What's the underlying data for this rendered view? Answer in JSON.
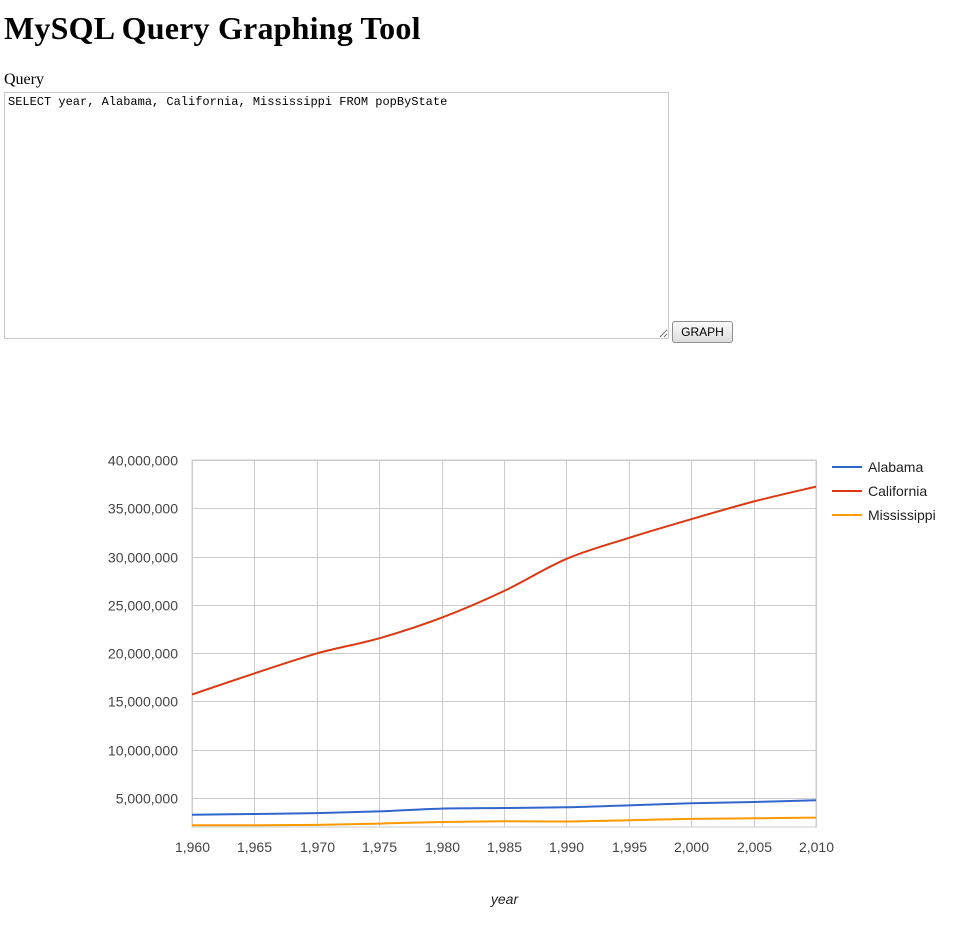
{
  "page": {
    "title": "MySQL Query Graphing Tool",
    "query_label": "Query",
    "query_value": "SELECT year, Alabama, California, Mississippi FROM popByState",
    "graph_button": "GRAPH"
  },
  "chart_data": {
    "type": "line",
    "xlabel": "year",
    "ylabel": "",
    "x": [
      1960,
      1965,
      1970,
      1975,
      1980,
      1985,
      1990,
      1995,
      2000,
      2005,
      2010
    ],
    "x_tick_labels": [
      "1,960",
      "1,965",
      "1,970",
      "1,975",
      "1,980",
      "1,985",
      "1,990",
      "1,995",
      "2,000",
      "2,005",
      "2,010"
    ],
    "y_ticks": [
      5000000,
      10000000,
      15000000,
      20000000,
      25000000,
      30000000,
      35000000,
      40000000
    ],
    "y_tick_labels": [
      "5,000,000",
      "10,000,000",
      "15,000,000",
      "20,000,000",
      "25,000,000",
      "30,000,000",
      "35,000,000",
      "40,000,000"
    ],
    "ylim": [
      2000000,
      40000000
    ],
    "xlim": [
      1960,
      2010
    ],
    "grid": true,
    "legend_position": "right",
    "series": [
      {
        "name": "Alabama",
        "color": "#3366cc",
        "values": [
          3270000,
          3350000,
          3440000,
          3620000,
          3900000,
          3970000,
          4040000,
          4240000,
          4450000,
          4590000,
          4780000
        ]
      },
      {
        "name": "California",
        "color": "#dc3912",
        "values": [
          15720000,
          17900000,
          19970000,
          21540000,
          23670000,
          26440000,
          29760000,
          31930000,
          33870000,
          35700000,
          37250000
        ]
      },
      {
        "name": "Mississippi",
        "color": "#ff9900",
        "values": [
          2180000,
          2180000,
          2220000,
          2350000,
          2520000,
          2590000,
          2570000,
          2700000,
          2840000,
          2900000,
          2970000
        ]
      }
    ]
  }
}
